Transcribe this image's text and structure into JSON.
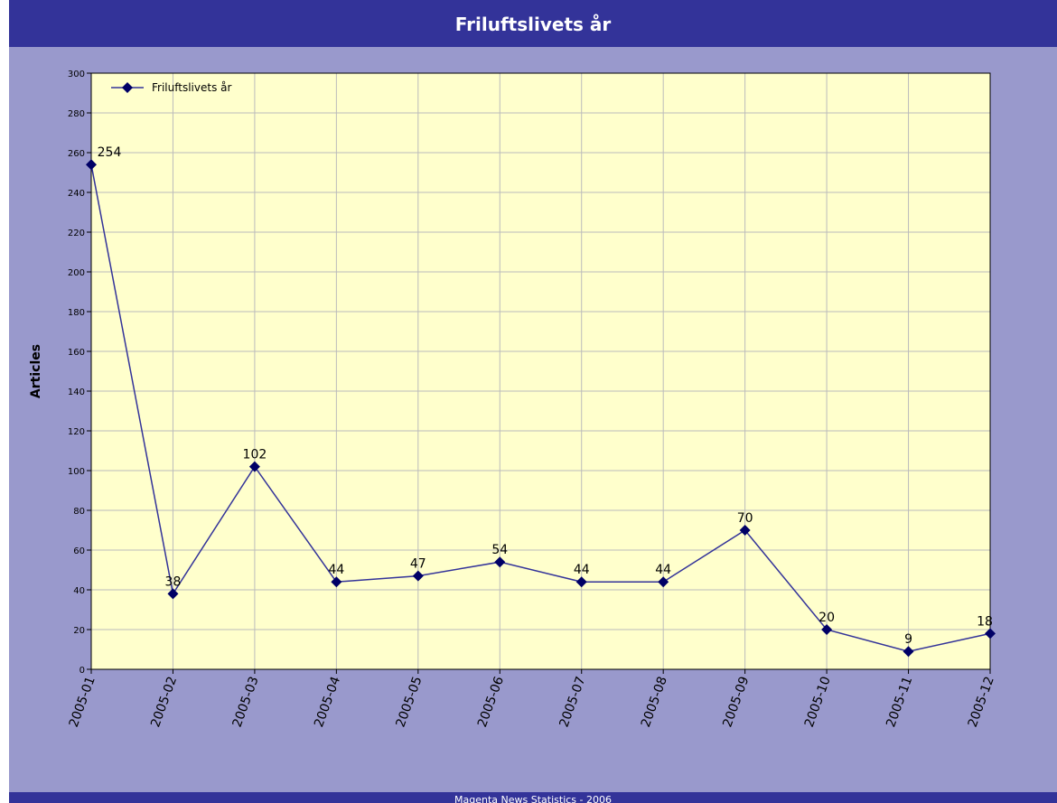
{
  "chart_data": {
    "type": "line",
    "title": "Friluftslivets år",
    "footer": "Magenta News Statistics - 2006",
    "y_label": "Articles",
    "categories": [
      "2005-01",
      "2005-02",
      "2005-03",
      "2005-04",
      "2005-05",
      "2005-06",
      "2005-07",
      "2005-08",
      "2005-09",
      "2005-10",
      "2005-11",
      "2005-12"
    ],
    "series": [
      {
        "name": "Friluftslivets år",
        "color": "#000066",
        "values": [
          254,
          38,
          102,
          44,
          47,
          54,
          44,
          44,
          70,
          20,
          9,
          18
        ]
      }
    ],
    "ylim": [
      0,
      300
    ],
    "yticks": [
      0,
      20,
      40,
      60,
      80,
      100,
      120,
      140,
      160,
      180,
      200,
      220,
      240,
      260,
      280,
      300
    ],
    "grid": true,
    "legend": "top-left"
  }
}
